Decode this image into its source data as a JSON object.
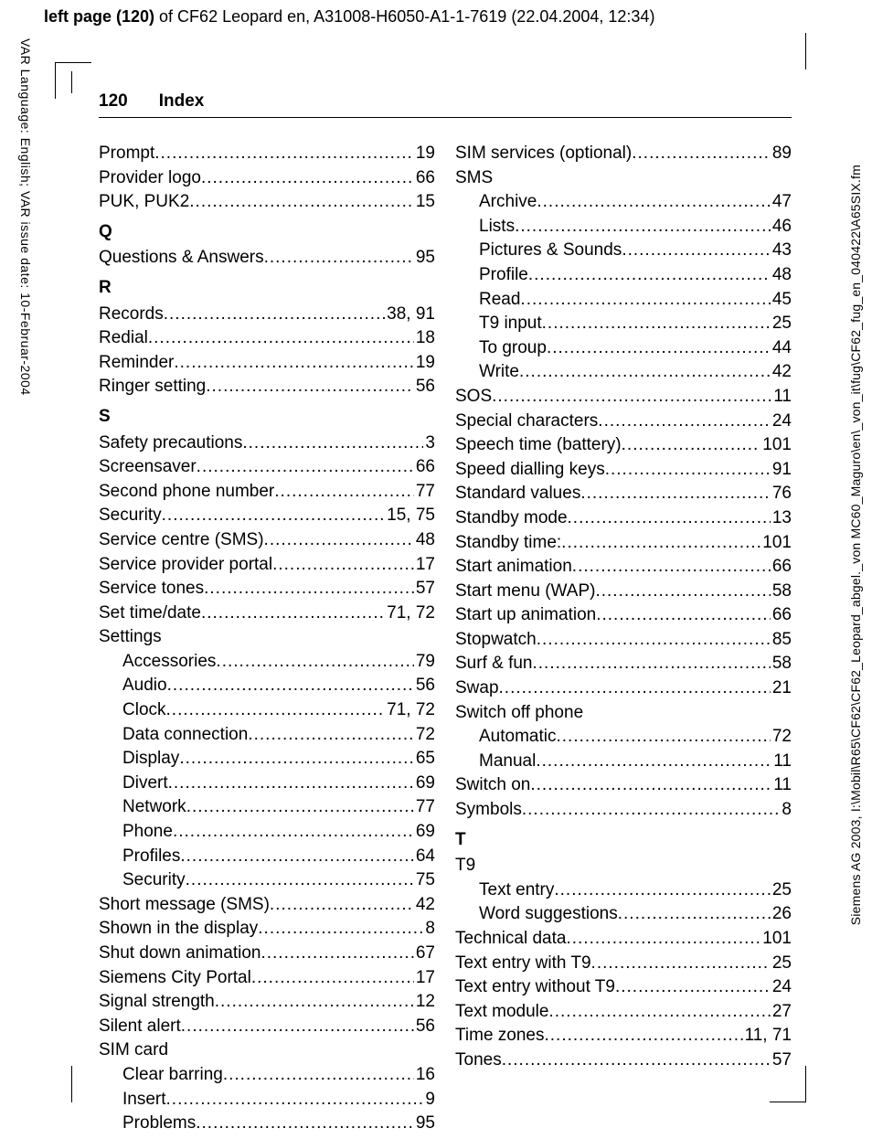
{
  "top": {
    "bold": "left page (120)",
    "rest": " of CF62 Leopard en, A31008-H6050-A1-1-7619 (22.04.2004, 12:34)"
  },
  "leftVertical": "VAR Language: English; VAR issue date: 10-Februar-2004",
  "rightVertical": "Siemens AG 2003, I:\\Mobil\\R65\\CF62\\CF62_Leopard_abgel._von MC60_Maguro\\en\\_von_it\\fug\\CF62_fug_en_040422\\A65SIX.fm",
  "pageHeader": {
    "num": "120",
    "title": "Index"
  },
  "col1": [
    {
      "t": "entry",
      "label": "Prompt",
      "pg": "19"
    },
    {
      "t": "entry",
      "label": "Provider logo",
      "pg": "66"
    },
    {
      "t": "entry",
      "label": "PUK, PUK2",
      "pg": "15"
    },
    {
      "t": "heading",
      "label": "Q"
    },
    {
      "t": "entry",
      "label": "Questions & Answers",
      "pg": "95"
    },
    {
      "t": "heading",
      "label": "R"
    },
    {
      "t": "entry",
      "label": "Records",
      "pg": "38, 91"
    },
    {
      "t": "entry",
      "label": "Redial",
      "pg": "18"
    },
    {
      "t": "entry",
      "label": "Reminder",
      "pg": "19"
    },
    {
      "t": "entry",
      "label": "Ringer setting",
      "pg": "56"
    },
    {
      "t": "heading",
      "label": "S"
    },
    {
      "t": "entry",
      "label": "Safety precautions",
      "pg": "3"
    },
    {
      "t": "entry",
      "label": "Screensaver",
      "pg": "66"
    },
    {
      "t": "entry",
      "label": "Second phone number",
      "pg": "77"
    },
    {
      "t": "entry",
      "label": "Security",
      "pg": "15, 75"
    },
    {
      "t": "entry",
      "label": "Service centre (SMS)",
      "pg": "48"
    },
    {
      "t": "entry",
      "label": "Service provider portal",
      "pg": "17"
    },
    {
      "t": "entry",
      "label": "Service tones",
      "pg": "57"
    },
    {
      "t": "entry",
      "label": "Set time/date",
      "pg": "71, 72"
    },
    {
      "t": "group",
      "label": "Settings"
    },
    {
      "t": "sub",
      "label": "Accessories",
      "pg": "79"
    },
    {
      "t": "sub",
      "label": "Audio",
      "pg": "56"
    },
    {
      "t": "sub",
      "label": "Clock",
      "pg": "71, 72"
    },
    {
      "t": "sub",
      "label": "Data connection",
      "pg": "72"
    },
    {
      "t": "sub",
      "label": "Display",
      "pg": "65"
    },
    {
      "t": "sub",
      "label": "Divert",
      "pg": "69"
    },
    {
      "t": "sub",
      "label": "Network",
      "pg": "77"
    },
    {
      "t": "sub",
      "label": "Phone",
      "pg": "69"
    },
    {
      "t": "sub",
      "label": "Profiles",
      "pg": "64"
    },
    {
      "t": "sub",
      "label": "Security",
      "pg": "75"
    },
    {
      "t": "entry",
      "label": "Short message (SMS)",
      "pg": "42"
    },
    {
      "t": "entry",
      "label": "Shown in the display",
      "pg": "8"
    },
    {
      "t": "entry",
      "label": "Shut down animation",
      "pg": "67"
    },
    {
      "t": "entry",
      "label": "Siemens City Portal",
      "pg": "17"
    },
    {
      "t": "entry",
      "label": "Signal strength",
      "pg": "12"
    },
    {
      "t": "entry",
      "label": "Silent alert",
      "pg": "56"
    },
    {
      "t": "group",
      "label": "SIM card"
    },
    {
      "t": "sub",
      "label": "Clear barring",
      "pg": "16"
    },
    {
      "t": "sub",
      "label": "Insert",
      "pg": "9"
    },
    {
      "t": "sub",
      "label": "Problems",
      "pg": "95"
    }
  ],
  "col2": [
    {
      "t": "entry",
      "label": "SIM services (optional)",
      "pg": "89"
    },
    {
      "t": "group",
      "label": "SMS"
    },
    {
      "t": "sub",
      "label": "Archive",
      "pg": "47"
    },
    {
      "t": "sub",
      "label": "Lists",
      "pg": "46"
    },
    {
      "t": "sub",
      "label": "Pictures & Sounds",
      "pg": "43"
    },
    {
      "t": "sub",
      "label": "Profile",
      "pg": "48"
    },
    {
      "t": "sub",
      "label": "Read",
      "pg": "45"
    },
    {
      "t": "sub",
      "label": "T9 input",
      "pg": "25"
    },
    {
      "t": "sub",
      "label": "To group",
      "pg": "44"
    },
    {
      "t": "sub",
      "label": "Write",
      "pg": "42"
    },
    {
      "t": "entry",
      "label": "SOS",
      "pg": "11"
    },
    {
      "t": "entry",
      "label": "Special characters",
      "pg": "24"
    },
    {
      "t": "entry",
      "label": "Speech time (battery)",
      "pg": "101"
    },
    {
      "t": "entry",
      "label": "Speed dialling keys",
      "pg": "91"
    },
    {
      "t": "entry",
      "label": "Standard values",
      "pg": "76"
    },
    {
      "t": "entry",
      "label": "Standby mode",
      "pg": "13"
    },
    {
      "t": "entry",
      "label": "Standby time:",
      "pg": "101"
    },
    {
      "t": "entry",
      "label": "Start animation",
      "pg": "66"
    },
    {
      "t": "entry",
      "label": "Start menu (WAP)",
      "pg": "58"
    },
    {
      "t": "entry",
      "label": "Start up animation",
      "pg": "66"
    },
    {
      "t": "entry",
      "label": "Stopwatch",
      "pg": "85"
    },
    {
      "t": "entry",
      "label": "Surf & fun",
      "pg": "58"
    },
    {
      "t": "entry",
      "label": "Swap",
      "pg": "21"
    },
    {
      "t": "group",
      "label": "Switch off phone"
    },
    {
      "t": "sub",
      "label": "Automatic",
      "pg": "72"
    },
    {
      "t": "sub",
      "label": "Manual",
      "pg": "11"
    },
    {
      "t": "entry",
      "label": "Switch on",
      "pg": "11"
    },
    {
      "t": "entry",
      "label": "Symbols",
      "pg": "8"
    },
    {
      "t": "heading",
      "label": "T"
    },
    {
      "t": "group",
      "label": "T9"
    },
    {
      "t": "sub",
      "label": "Text entry",
      "pg": "25"
    },
    {
      "t": "sub",
      "label": "Word suggestions",
      "pg": "26"
    },
    {
      "t": "entry",
      "label": "Technical data",
      "pg": "101"
    },
    {
      "t": "entry",
      "label": "Text entry with T9",
      "pg": "25"
    },
    {
      "t": "entry",
      "label": "Text entry without T9",
      "pg": "24"
    },
    {
      "t": "entry",
      "label": "Text module",
      "pg": "27"
    },
    {
      "t": "entry",
      "label": "Time zones",
      "pg": "11, 71"
    },
    {
      "t": "entry",
      "label": "Tones",
      "pg": "57"
    }
  ]
}
